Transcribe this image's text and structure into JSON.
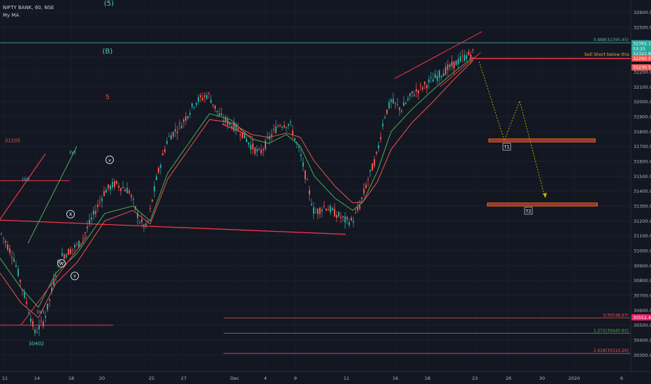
{
  "header": {
    "title": "NIFTY BANK, 60, NSE",
    "indicator": "My MA"
  },
  "chart_data": {
    "type": "candlestick",
    "symbol": "NIFTY BANK",
    "interval": "60",
    "exchange": "NSE",
    "ylim": [
      30200,
      32660
    ],
    "y_ticks": [
      "32600.00",
      "32500.00",
      "32400.00",
      "32300.00",
      "32200.00",
      "32100.00",
      "32000.00",
      "31900.00",
      "31800.00",
      "31700.00",
      "31600.00",
      "31500.00",
      "31400.00",
      "31300.00",
      "31200.00",
      "31100.00",
      "31000.00",
      "30900.00",
      "30800.00",
      "30700.00",
      "30600.00",
      "30500.00",
      "30400.00",
      "30300.00"
    ],
    "x_ticks": [
      "11",
      "14",
      "18",
      "20",
      "25",
      "27",
      "Dec",
      "4",
      "9",
      "11",
      "16",
      "18",
      "23",
      "26",
      "30",
      "2020",
      "6"
    ],
    "price_path": [
      [
        -2,
        31150
      ],
      [
        20,
        30950
      ],
      [
        35,
        30700
      ],
      [
        50,
        30450
      ],
      [
        62,
        30520
      ],
      [
        70,
        30650
      ],
      [
        85,
        30950
      ],
      [
        100,
        31000
      ],
      [
        115,
        31050
      ],
      [
        135,
        31250
      ],
      [
        150,
        31400
      ],
      [
        165,
        31450
      ],
      [
        185,
        31400
      ],
      [
        200,
        31200
      ],
      [
        210,
        31150
      ],
      [
        225,
        31500
      ],
      [
        240,
        31750
      ],
      [
        260,
        31850
      ],
      [
        280,
        32000
      ],
      [
        298,
        32050
      ],
      [
        315,
        31900
      ],
      [
        330,
        31850
      ],
      [
        345,
        31800
      ],
      [
        360,
        31700
      ],
      [
        372,
        31650
      ],
      [
        385,
        31750
      ],
      [
        400,
        31850
      ],
      [
        415,
        31850
      ],
      [
        430,
        31650
      ],
      [
        440,
        31450
      ],
      [
        450,
        31250
      ],
      [
        465,
        31300
      ],
      [
        480,
        31250
      ],
      [
        495,
        31200
      ],
      [
        505,
        31200
      ],
      [
        515,
        31300
      ],
      [
        525,
        31450
      ],
      [
        540,
        31650
      ],
      [
        550,
        31900
      ],
      [
        560,
        32000
      ],
      [
        575,
        31950
      ],
      [
        590,
        32050
      ],
      [
        605,
        32100
      ],
      [
        620,
        32150
      ],
      [
        635,
        32200
      ],
      [
        650,
        32250
      ],
      [
        665,
        32300
      ],
      [
        678,
        32330
      ]
    ],
    "ma_green": [
      [
        0,
        30950
      ],
      [
        30,
        30750
      ],
      [
        55,
        30620
      ],
      [
        80,
        30850
      ],
      [
        110,
        30980
      ],
      [
        150,
        31250
      ],
      [
        190,
        31300
      ],
      [
        215,
        31200
      ],
      [
        240,
        31520
      ],
      [
        270,
        31720
      ],
      [
        300,
        31920
      ],
      [
        330,
        31880
      ],
      [
        360,
        31750
      ],
      [
        385,
        31720
      ],
      [
        410,
        31780
      ],
      [
        430,
        31700
      ],
      [
        450,
        31500
      ],
      [
        480,
        31350
      ],
      [
        505,
        31270
      ],
      [
        520,
        31330
      ],
      [
        540,
        31530
      ],
      [
        560,
        31800
      ],
      [
        590,
        31950
      ],
      [
        620,
        32080
      ],
      [
        650,
        32200
      ],
      [
        678,
        32300
      ]
    ],
    "ma_red": [
      [
        0,
        30850
      ],
      [
        30,
        30650
      ],
      [
        55,
        30550
      ],
      [
        80,
        30780
      ],
      [
        110,
        30920
      ],
      [
        150,
        31200
      ],
      [
        190,
        31270
      ],
      [
        215,
        31180
      ],
      [
        240,
        31480
      ],
      [
        270,
        31680
      ],
      [
        300,
        31880
      ],
      [
        330,
        31860
      ],
      [
        360,
        31780
      ],
      [
        385,
        31760
      ],
      [
        410,
        31790
      ],
      [
        430,
        31760
      ],
      [
        450,
        31600
      ],
      [
        480,
        31430
      ],
      [
        505,
        31320
      ],
      [
        520,
        31330
      ],
      [
        540,
        31460
      ],
      [
        560,
        31680
      ],
      [
        590,
        31860
      ],
      [
        620,
        32000
      ],
      [
        650,
        32150
      ],
      [
        678,
        32280
      ]
    ],
    "right_labels": [
      {
        "text": "32392.10",
        "price": 32392.1,
        "bg": "#26a69a",
        "fg": "#ffffff"
      },
      {
        "text": "53:25",
        "price": 32357,
        "bg": "#26a69a",
        "fg": "#ffffff"
      },
      {
        "text": "32322.85",
        "price": 32322.85,
        "bg": "#26a69a",
        "fg": "#ffffff"
      },
      {
        "text": "32290.50",
        "price": 32290.5,
        "bg": "#ef5350",
        "fg": "#ffffff"
      },
      {
        "text": "32230.51",
        "price": 32230.51,
        "bg": "#ef5350",
        "fg": "#ffffff"
      },
      {
        "text": "30552.45",
        "price": 30552.45,
        "bg": "#e91e63",
        "fg": "#ffffff"
      }
    ],
    "fib_levels": [
      {
        "text": "0.888(32395.45)",
        "price": 32395.45,
        "color": "#4db6ac",
        "x1": 0
      },
      {
        "text": "1(30548.97)",
        "price": 30548.97,
        "color": "#ef5350",
        "x1": 320
      },
      {
        "text": "1.272(30445.91)",
        "price": 30445.91,
        "color": "#4caf50",
        "x1": 320
      },
      {
        "text": "1.618(30310.26)",
        "price": 30310.26,
        "color": "#ef5350",
        "x1": 320
      }
    ],
    "sell_note": "Sell Short below this",
    "targets": [
      {
        "label": "T1",
        "price": 31740
      },
      {
        "label": "T2",
        "price": 31310
      }
    ],
    "wave_labels": [
      {
        "text": "(5)",
        "style": "teal",
        "x": 156,
        "price": 32660
      },
      {
        "text": "(B)",
        "style": "teal",
        "x": 154,
        "price": 32340
      },
      {
        "text": "5",
        "style": "red",
        "x": 154,
        "price": 32030
      },
      {
        "text": "31205",
        "style": "red",
        "x": 18,
        "price": 31740
      },
      {
        "text": "(v)",
        "style": "teal",
        "x": 104,
        "price": 31660
      },
      {
        "text": "v",
        "style": "circle",
        "x": 157,
        "price": 31610
      },
      {
        "text": "(iii)",
        "style": "teal",
        "x": 37,
        "price": 31480
      },
      {
        "text": "X",
        "style": "circle",
        "x": 101,
        "price": 31245
      },
      {
        "text": "W",
        "style": "circle",
        "x": 88,
        "price": 30915
      },
      {
        "text": "Y",
        "style": "circle",
        "x": 107,
        "price": 30830
      },
      {
        "text": "(iv)",
        "style": "teal",
        "x": 58,
        "price": 30590
      },
      {
        "text": "30402",
        "style": "teal",
        "x": 52,
        "price": 30375
      }
    ]
  }
}
